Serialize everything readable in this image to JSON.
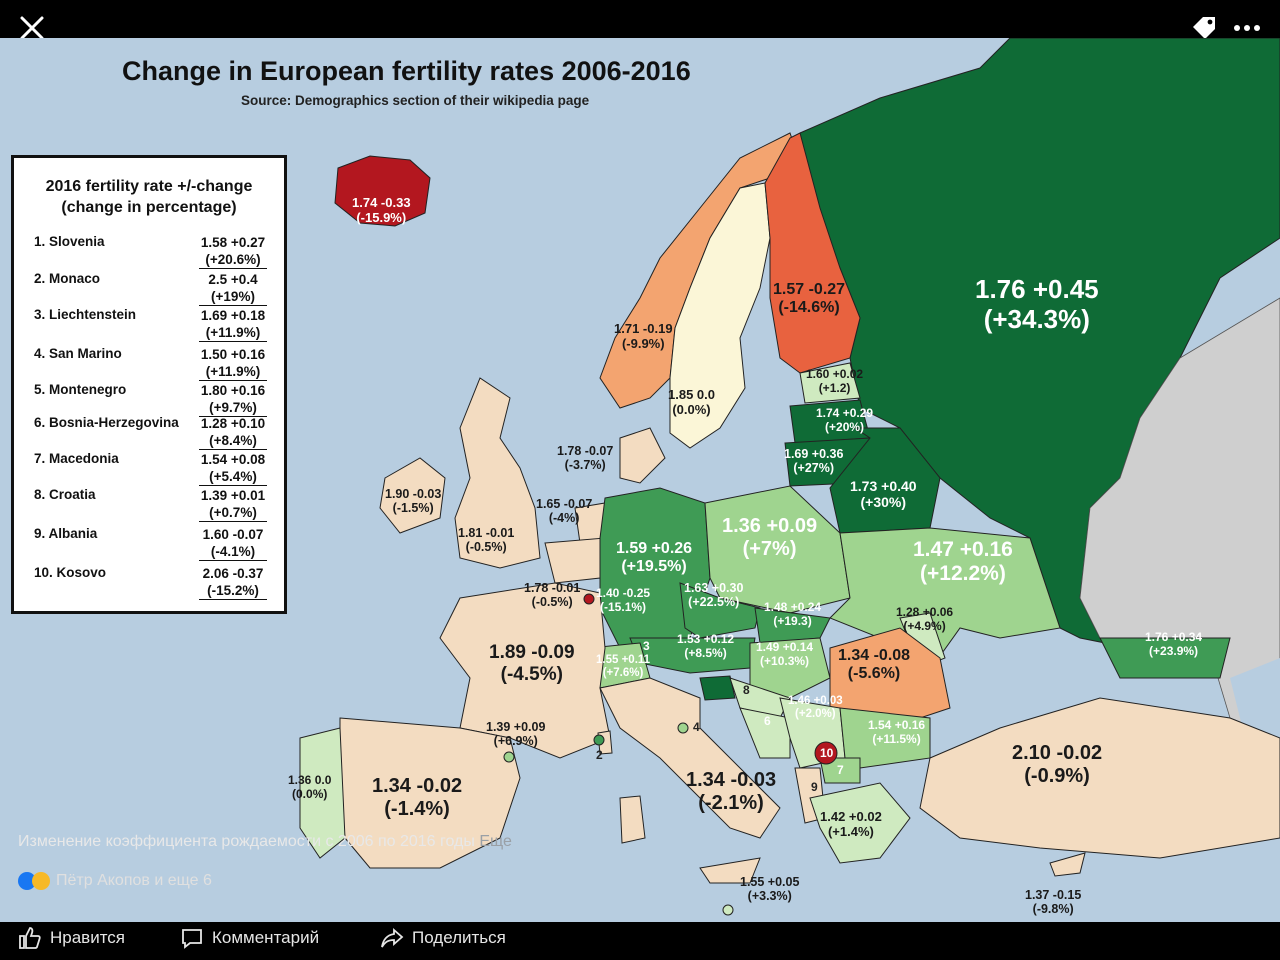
{
  "title": "Change in European fertility rates 2006-2016",
  "subtitle": "Source: Demographics section of their wikipedia page",
  "legend": {
    "title_line1": "2016 fertility rate +/-change",
    "title_line2": "(change in percentage)",
    "rows": [
      {
        "name": "1. Slovenia",
        "v1": "1.58 +0.27",
        "v2": "(+20.6%)"
      },
      {
        "name": "2. Monaco",
        "v1": "2.5 +0.4",
        "v2": "(+19%)"
      },
      {
        "name": "3. Liechtenstein",
        "v1": "1.69 +0.18",
        "v2": "(+11.9%)"
      },
      {
        "name": "4. San Marino",
        "v1": "1.50 +0.16",
        "v2": "(+11.9%)"
      },
      {
        "name": "5. Montenegro",
        "v1": "1.80 +0.16",
        "v2": "(+9.7%)"
      },
      {
        "name": "6. Bosnia-Herzegovina",
        "v1": "1.28 +0.10",
        "v2": "(+8.4%)"
      },
      {
        "name": "7. Macedonia",
        "v1": "1.54 +0.08",
        "v2": "(+5.4%)"
      },
      {
        "name": "8. Croatia",
        "v1": "1.39 +0.01",
        "v2": "(+0.7%)"
      },
      {
        "name": "9. Albania",
        "v1": "1.60 -0.07",
        "v2": "(-4.1%)"
      },
      {
        "name": "10. Kosovo",
        "v1": "2.06 -0.37",
        "v2": "(-15.2%)"
      }
    ]
  },
  "regions": [
    {
      "id": "russia",
      "l1": "1.76 +0.45",
      "l2": "(+34.3%)"
    },
    {
      "id": "iceland",
      "l1": "1.74 -0.33",
      "l2": "(-15.9%)"
    },
    {
      "id": "finland",
      "l1": "1.57 -0.27",
      "l2": "(-14.6%)"
    },
    {
      "id": "norway",
      "l1": "1.71 -0.19",
      "l2": "(-9.9%)"
    },
    {
      "id": "sweden",
      "l1": "1.85 0.0",
      "l2": "(0.0%)"
    },
    {
      "id": "estonia",
      "l1": "1.60 +0.02",
      "l2": "(+1.2)"
    },
    {
      "id": "latvia",
      "l1": "1.74 +0.29",
      "l2": "(+20%)"
    },
    {
      "id": "lithuania",
      "l1": "1.69 +0.36",
      "l2": "(+27%)"
    },
    {
      "id": "belarus",
      "l1": "1.73 +0.40",
      "l2": "(+30%)"
    },
    {
      "id": "denmark",
      "l1": "1.78 -0.07",
      "l2": "(-3.7%)"
    },
    {
      "id": "ireland",
      "l1": "1.90 -0.03",
      "l2": "(-1.5%)"
    },
    {
      "id": "uk",
      "l1": "1.81 -0.01",
      "l2": "(-0.5%)"
    },
    {
      "id": "netherlands",
      "l1": "1.65 -0.07",
      "l2": "(-4%)"
    },
    {
      "id": "belgium",
      "l1": "1.78 -0.01",
      "l2": "(-0.5%)"
    },
    {
      "id": "luxembourg",
      "l1": "1.40 -0.25",
      "l2": "(-15.1%)"
    },
    {
      "id": "germany",
      "l1": "1.59 +0.26",
      "l2": "(+19.5%)"
    },
    {
      "id": "poland",
      "l1": "1.36 +0.09",
      "l2": "(+7%)"
    },
    {
      "id": "ukraine",
      "l1": "1.47 +0.16",
      "l2": "(+12.2%)"
    },
    {
      "id": "czech",
      "l1": "1.63 +0.30",
      "l2": "(+22.5%)"
    },
    {
      "id": "slovakia",
      "l1": "1.48 +0.24",
      "l2": "(+19.3)"
    },
    {
      "id": "moldova",
      "l1": "1.28 +0.06",
      "l2": "(+4.9%)"
    },
    {
      "id": "austria",
      "l1": "1.53 +0.12",
      "l2": "(+8.5%)"
    },
    {
      "id": "hungary",
      "l1": "1.49 +0.14",
      "l2": "(+10.3%)"
    },
    {
      "id": "romania",
      "l1": "1.34 -0.08",
      "l2": "(-5.6%)"
    },
    {
      "id": "switzerland",
      "l1": "1.55 +0.11",
      "l2": "(+7.6%)"
    },
    {
      "id": "france",
      "l1": "1.89 -0.09",
      "l2": "(-4.5%)"
    },
    {
      "id": "serbia",
      "l1": "1.46 +0.03",
      "l2": "(+2.0%)"
    },
    {
      "id": "bulgaria",
      "l1": "1.54 +0.16",
      "l2": "(+11.5%)"
    },
    {
      "id": "turkey",
      "l1": "2.10 -0.02",
      "l2": "(-0.9%)"
    },
    {
      "id": "georgia",
      "l1": "1.76 +0.34",
      "l2": "(+23.9%)"
    },
    {
      "id": "corsica",
      "l1": "1.39 +0.09",
      "l2": "(+6.9%)"
    },
    {
      "id": "portugal",
      "l1": "1.36 0.0",
      "l2": "(0.0%)"
    },
    {
      "id": "spain",
      "l1": "1.34 -0.02",
      "l2": "(-1.4%)"
    },
    {
      "id": "italy",
      "l1": "1.34 -0.03",
      "l2": "(-2.1%)"
    },
    {
      "id": "greece",
      "l1": "1.42 +0.02",
      "l2": "(+1.4%)"
    },
    {
      "id": "malta",
      "l1": "1.55 +0.05",
      "l2": "(+3.3%)"
    },
    {
      "id": "cyprus",
      "l1": "1.37 -0.15",
      "l2": "(-9.8%)"
    }
  ],
  "markers": [
    "2",
    "3",
    "4",
    "6",
    "7",
    "8",
    "9",
    "10"
  ],
  "caption": {
    "text": "Изменение коэффициента рождаемости с 2006 по 2016 годы",
    "more": "Еще"
  },
  "reactions": {
    "text": "Пётр Акопов и еще 6"
  },
  "actions": {
    "like": "Нравится",
    "comment": "Комментарий",
    "share": "Поделиться"
  },
  "colors": {
    "sea": "#b7cde0",
    "dark_green": "#0f6b36",
    "green": "#3f9b55",
    "light_green": "#9fd48f",
    "pale_green": "#cfeac0",
    "cream": "#fbf6d7",
    "peach": "#f3dcc1",
    "orange": "#f3a470",
    "red_orange": "#e8623f",
    "dark_red": "#b3171f",
    "gray_land": "#cfcfcf"
  }
}
